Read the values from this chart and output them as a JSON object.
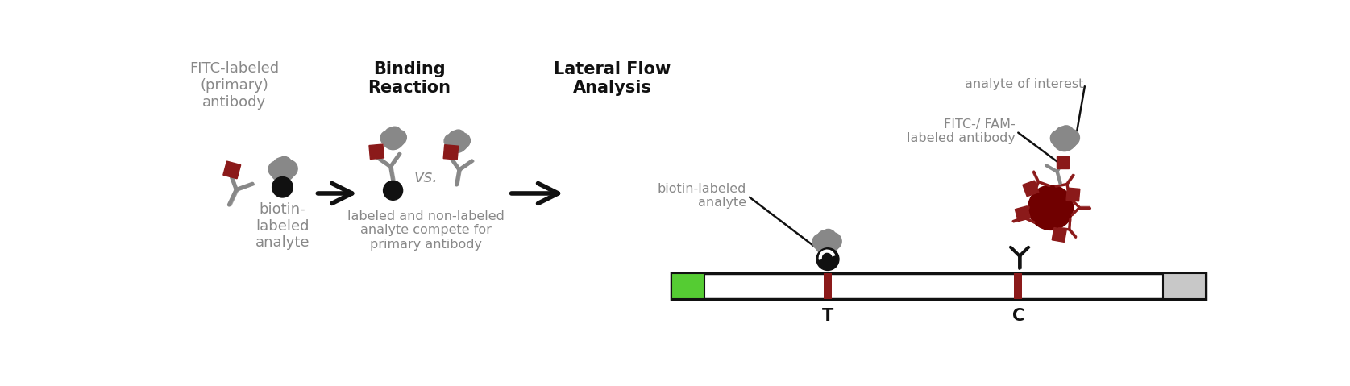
{
  "bg_color": "#ffffff",
  "gray": "#888888",
  "dark_red": "#8B1A1A",
  "black": "#111111",
  "green": "#55CC33",
  "light_gray": "#CCCCCC",
  "label1": "FITC-labeled\n(primary)\nantibody",
  "label2": "biotin-\nlabeled\nanalyte",
  "label3": "Binding\nReaction",
  "label4": "labeled and non-labeled\nanalyte compete for\nprimary antibody",
  "label5": "Lateral Flow\nAnalysis",
  "label6": "analyte of interest",
  "label7": "FITC-/ FAM-\nlabeled antibody",
  "label8": "biotin-labeled\nanalyte",
  "label_T": "T",
  "label_C": "C",
  "fig_w": 16.75,
  "fig_h": 4.79,
  "dpi": 100
}
